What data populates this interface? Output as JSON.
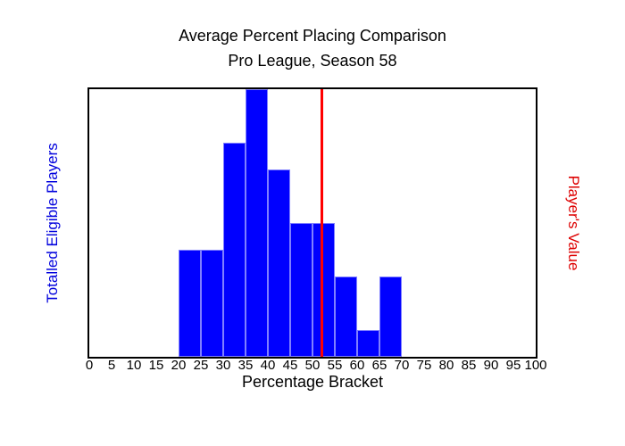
{
  "chart_data": {
    "type": "bar",
    "subtype": "histogram",
    "title": "Average Percent Placing Comparison",
    "subtitle": "Pro League, Season 58",
    "xlabel": "Percentage Bracket",
    "ylabel_left": "Totalled Eligible Players",
    "ylabel_right": "Player's Value",
    "xlim": [
      0,
      100
    ],
    "ylim": [
      0,
      10
    ],
    "x_ticks": [
      0,
      5,
      10,
      15,
      20,
      25,
      30,
      35,
      40,
      45,
      50,
      55,
      60,
      65,
      70,
      75,
      80,
      85,
      90,
      95,
      100
    ],
    "bin_edges": [
      20,
      25,
      30,
      35,
      40,
      45,
      50,
      55,
      60,
      65,
      70
    ],
    "counts": [
      4,
      4,
      8,
      10,
      7,
      5,
      5,
      3,
      1,
      3
    ],
    "vline": {
      "x": 52,
      "color": "#ff0000"
    },
    "bar_color": "#0000ff",
    "bar_edge_color": "#8080ff",
    "axis_color": "#000000",
    "left_label_color": "#0000dd",
    "right_label_color": "#dd0000",
    "grid": false,
    "legend": null
  }
}
